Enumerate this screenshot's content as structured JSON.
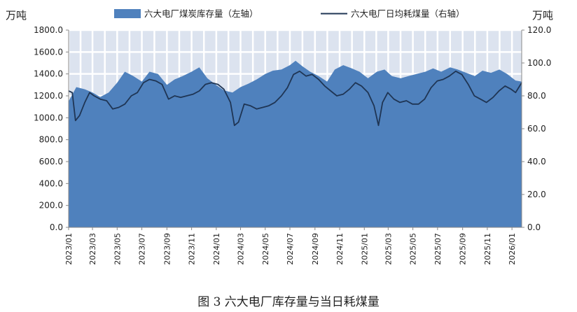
{
  "chart_data": {
    "type": "area",
    "caption": "图 3 六大电厂库存量与当日耗煤量",
    "left_unit": "万吨",
    "right_unit": "万吨",
    "colors": {
      "area": "#4f81bd",
      "line": "#1f3554",
      "grid": "#ffffff",
      "plot_bg": "#dce3ef"
    },
    "left_axis": {
      "min": 0,
      "max": 1800,
      "step": 200,
      "tick_labels": [
        "0.0",
        "200.0",
        "400.0",
        "600.0",
        "800.0",
        "1000.0",
        "1200.0",
        "1400.0",
        "1600.0",
        "1800.0"
      ]
    },
    "right_axis": {
      "min": 0,
      "max": 120,
      "step": 20,
      "tick_labels": [
        "0.0",
        "20.0",
        "40.0",
        "60.0",
        "80.0",
        "100.0",
        "120.0"
      ]
    },
    "x_tick_labels": [
      "2023/01",
      "2023/03",
      "2023/05",
      "2023/07",
      "2023/09",
      "2023/11",
      "2024/01",
      "2024/03",
      "2024/05",
      "2024/07",
      "2024/09",
      "2024/11",
      "2025/01",
      "2025/03",
      "2025/05",
      "2025/07",
      "2025/09",
      "2025/11",
      "2026/01"
    ],
    "x_range": [
      "2023-01-01",
      "2026-01-25"
    ],
    "series": [
      {
        "name": "六大电厂煤炭库存量（左轴）",
        "kind": "area",
        "axis": "left",
        "points": [
          [
            "2023-01-01",
            1150
          ],
          [
            "2023-01-20",
            1280
          ],
          [
            "2023-02-10",
            1260
          ],
          [
            "2023-03-01",
            1230
          ],
          [
            "2023-03-20",
            1190
          ],
          [
            "2023-04-10",
            1230
          ],
          [
            "2023-05-01",
            1320
          ],
          [
            "2023-05-20",
            1420
          ],
          [
            "2023-06-10",
            1380
          ],
          [
            "2023-07-01",
            1330
          ],
          [
            "2023-07-20",
            1420
          ],
          [
            "2023-08-10",
            1400
          ],
          [
            "2023-09-01",
            1300
          ],
          [
            "2023-09-20",
            1350
          ],
          [
            "2023-10-10",
            1380
          ],
          [
            "2023-11-01",
            1420
          ],
          [
            "2023-11-20",
            1460
          ],
          [
            "2023-12-10",
            1360
          ],
          [
            "2023-12-31",
            1300
          ],
          [
            "2024-01-20",
            1250
          ],
          [
            "2024-02-10",
            1230
          ],
          [
            "2024-03-01",
            1280
          ],
          [
            "2024-03-20",
            1310
          ],
          [
            "2024-04-10",
            1350
          ],
          [
            "2024-05-01",
            1400
          ],
          [
            "2024-05-20",
            1430
          ],
          [
            "2024-06-10",
            1440
          ],
          [
            "2024-07-01",
            1480
          ],
          [
            "2024-07-15",
            1520
          ],
          [
            "2024-08-01",
            1470
          ],
          [
            "2024-08-20",
            1420
          ],
          [
            "2024-09-10",
            1380
          ],
          [
            "2024-10-01",
            1330
          ],
          [
            "2024-10-20",
            1440
          ],
          [
            "2024-11-10",
            1480
          ],
          [
            "2024-12-01",
            1450
          ],
          [
            "2024-12-20",
            1420
          ],
          [
            "2025-01-10",
            1360
          ],
          [
            "2025-02-01",
            1420
          ],
          [
            "2025-02-20",
            1440
          ],
          [
            "2025-03-10",
            1380
          ],
          [
            "2025-04-01",
            1360
          ],
          [
            "2025-04-20",
            1380
          ],
          [
            "2025-05-10",
            1400
          ],
          [
            "2025-06-01",
            1420
          ],
          [
            "2025-06-20",
            1450
          ],
          [
            "2025-07-10",
            1420
          ],
          [
            "2025-08-01",
            1460
          ],
          [
            "2025-08-20",
            1440
          ],
          [
            "2025-09-10",
            1410
          ],
          [
            "2025-10-01",
            1380
          ],
          [
            "2025-10-20",
            1430
          ],
          [
            "2025-11-10",
            1410
          ],
          [
            "2025-12-01",
            1440
          ],
          [
            "2025-12-20",
            1400
          ],
          [
            "2026-01-10",
            1340
          ],
          [
            "2026-01-25",
            1330
          ]
        ]
      },
      {
        "name": "六大电厂日均耗煤量（右轴）",
        "kind": "line",
        "axis": "right",
        "points": [
          [
            "2023-01-01",
            83
          ],
          [
            "2023-01-10",
            82
          ],
          [
            "2023-01-18",
            65
          ],
          [
            "2023-01-28",
            68
          ],
          [
            "2023-02-10",
            76
          ],
          [
            "2023-02-22",
            82
          ],
          [
            "2023-03-05",
            80
          ],
          [
            "2023-03-20",
            78
          ],
          [
            "2023-04-05",
            77
          ],
          [
            "2023-04-20",
            72
          ],
          [
            "2023-05-05",
            73
          ],
          [
            "2023-05-20",
            75
          ],
          [
            "2023-06-05",
            80
          ],
          [
            "2023-06-20",
            82
          ],
          [
            "2023-07-05",
            88
          ],
          [
            "2023-07-20",
            90
          ],
          [
            "2023-08-05",
            89
          ],
          [
            "2023-08-20",
            87
          ],
          [
            "2023-09-05",
            78
          ],
          [
            "2023-09-20",
            80
          ],
          [
            "2023-10-05",
            79
          ],
          [
            "2023-10-20",
            80
          ],
          [
            "2023-11-05",
            81
          ],
          [
            "2023-11-20",
            83
          ],
          [
            "2023-12-05",
            87
          ],
          [
            "2023-12-20",
            88
          ],
          [
            "2024-01-05",
            87
          ],
          [
            "2024-01-20",
            84
          ],
          [
            "2024-02-05",
            76
          ],
          [
            "2024-02-15",
            62
          ],
          [
            "2024-02-25",
            64
          ],
          [
            "2024-03-10",
            75
          ],
          [
            "2024-03-25",
            74
          ],
          [
            "2024-04-10",
            72
          ],
          [
            "2024-04-25",
            73
          ],
          [
            "2024-05-10",
            74
          ],
          [
            "2024-05-25",
            76
          ],
          [
            "2024-06-10",
            80
          ],
          [
            "2024-06-25",
            85
          ],
          [
            "2024-07-10",
            93
          ],
          [
            "2024-07-25",
            95
          ],
          [
            "2024-08-10",
            92
          ],
          [
            "2024-08-25",
            93
          ],
          [
            "2024-09-10",
            90
          ],
          [
            "2024-09-25",
            86
          ],
          [
            "2024-10-10",
            83
          ],
          [
            "2024-10-25",
            80
          ],
          [
            "2024-11-10",
            81
          ],
          [
            "2024-11-25",
            84
          ],
          [
            "2024-12-10",
            88
          ],
          [
            "2024-12-25",
            86
          ],
          [
            "2025-01-10",
            82
          ],
          [
            "2025-01-25",
            74
          ],
          [
            "2025-02-05",
            62
          ],
          [
            "2025-02-15",
            76
          ],
          [
            "2025-02-28",
            82
          ],
          [
            "2025-03-15",
            78
          ],
          [
            "2025-03-30",
            76
          ],
          [
            "2025-04-15",
            77
          ],
          [
            "2025-04-30",
            75
          ],
          [
            "2025-05-15",
            75
          ],
          [
            "2025-05-30",
            78
          ],
          [
            "2025-06-15",
            85
          ],
          [
            "2025-06-30",
            89
          ],
          [
            "2025-07-15",
            90
          ],
          [
            "2025-07-30",
            92
          ],
          [
            "2025-08-15",
            95
          ],
          [
            "2025-08-30",
            93
          ],
          [
            "2025-09-15",
            87
          ],
          [
            "2025-09-30",
            80
          ],
          [
            "2025-10-15",
            78
          ],
          [
            "2025-10-30",
            76
          ],
          [
            "2025-11-15",
            79
          ],
          [
            "2025-11-30",
            83
          ],
          [
            "2025-12-15",
            86
          ],
          [
            "2025-12-30",
            84
          ],
          [
            "2026-01-10",
            82
          ],
          [
            "2026-01-25",
            88
          ]
        ]
      }
    ]
  }
}
